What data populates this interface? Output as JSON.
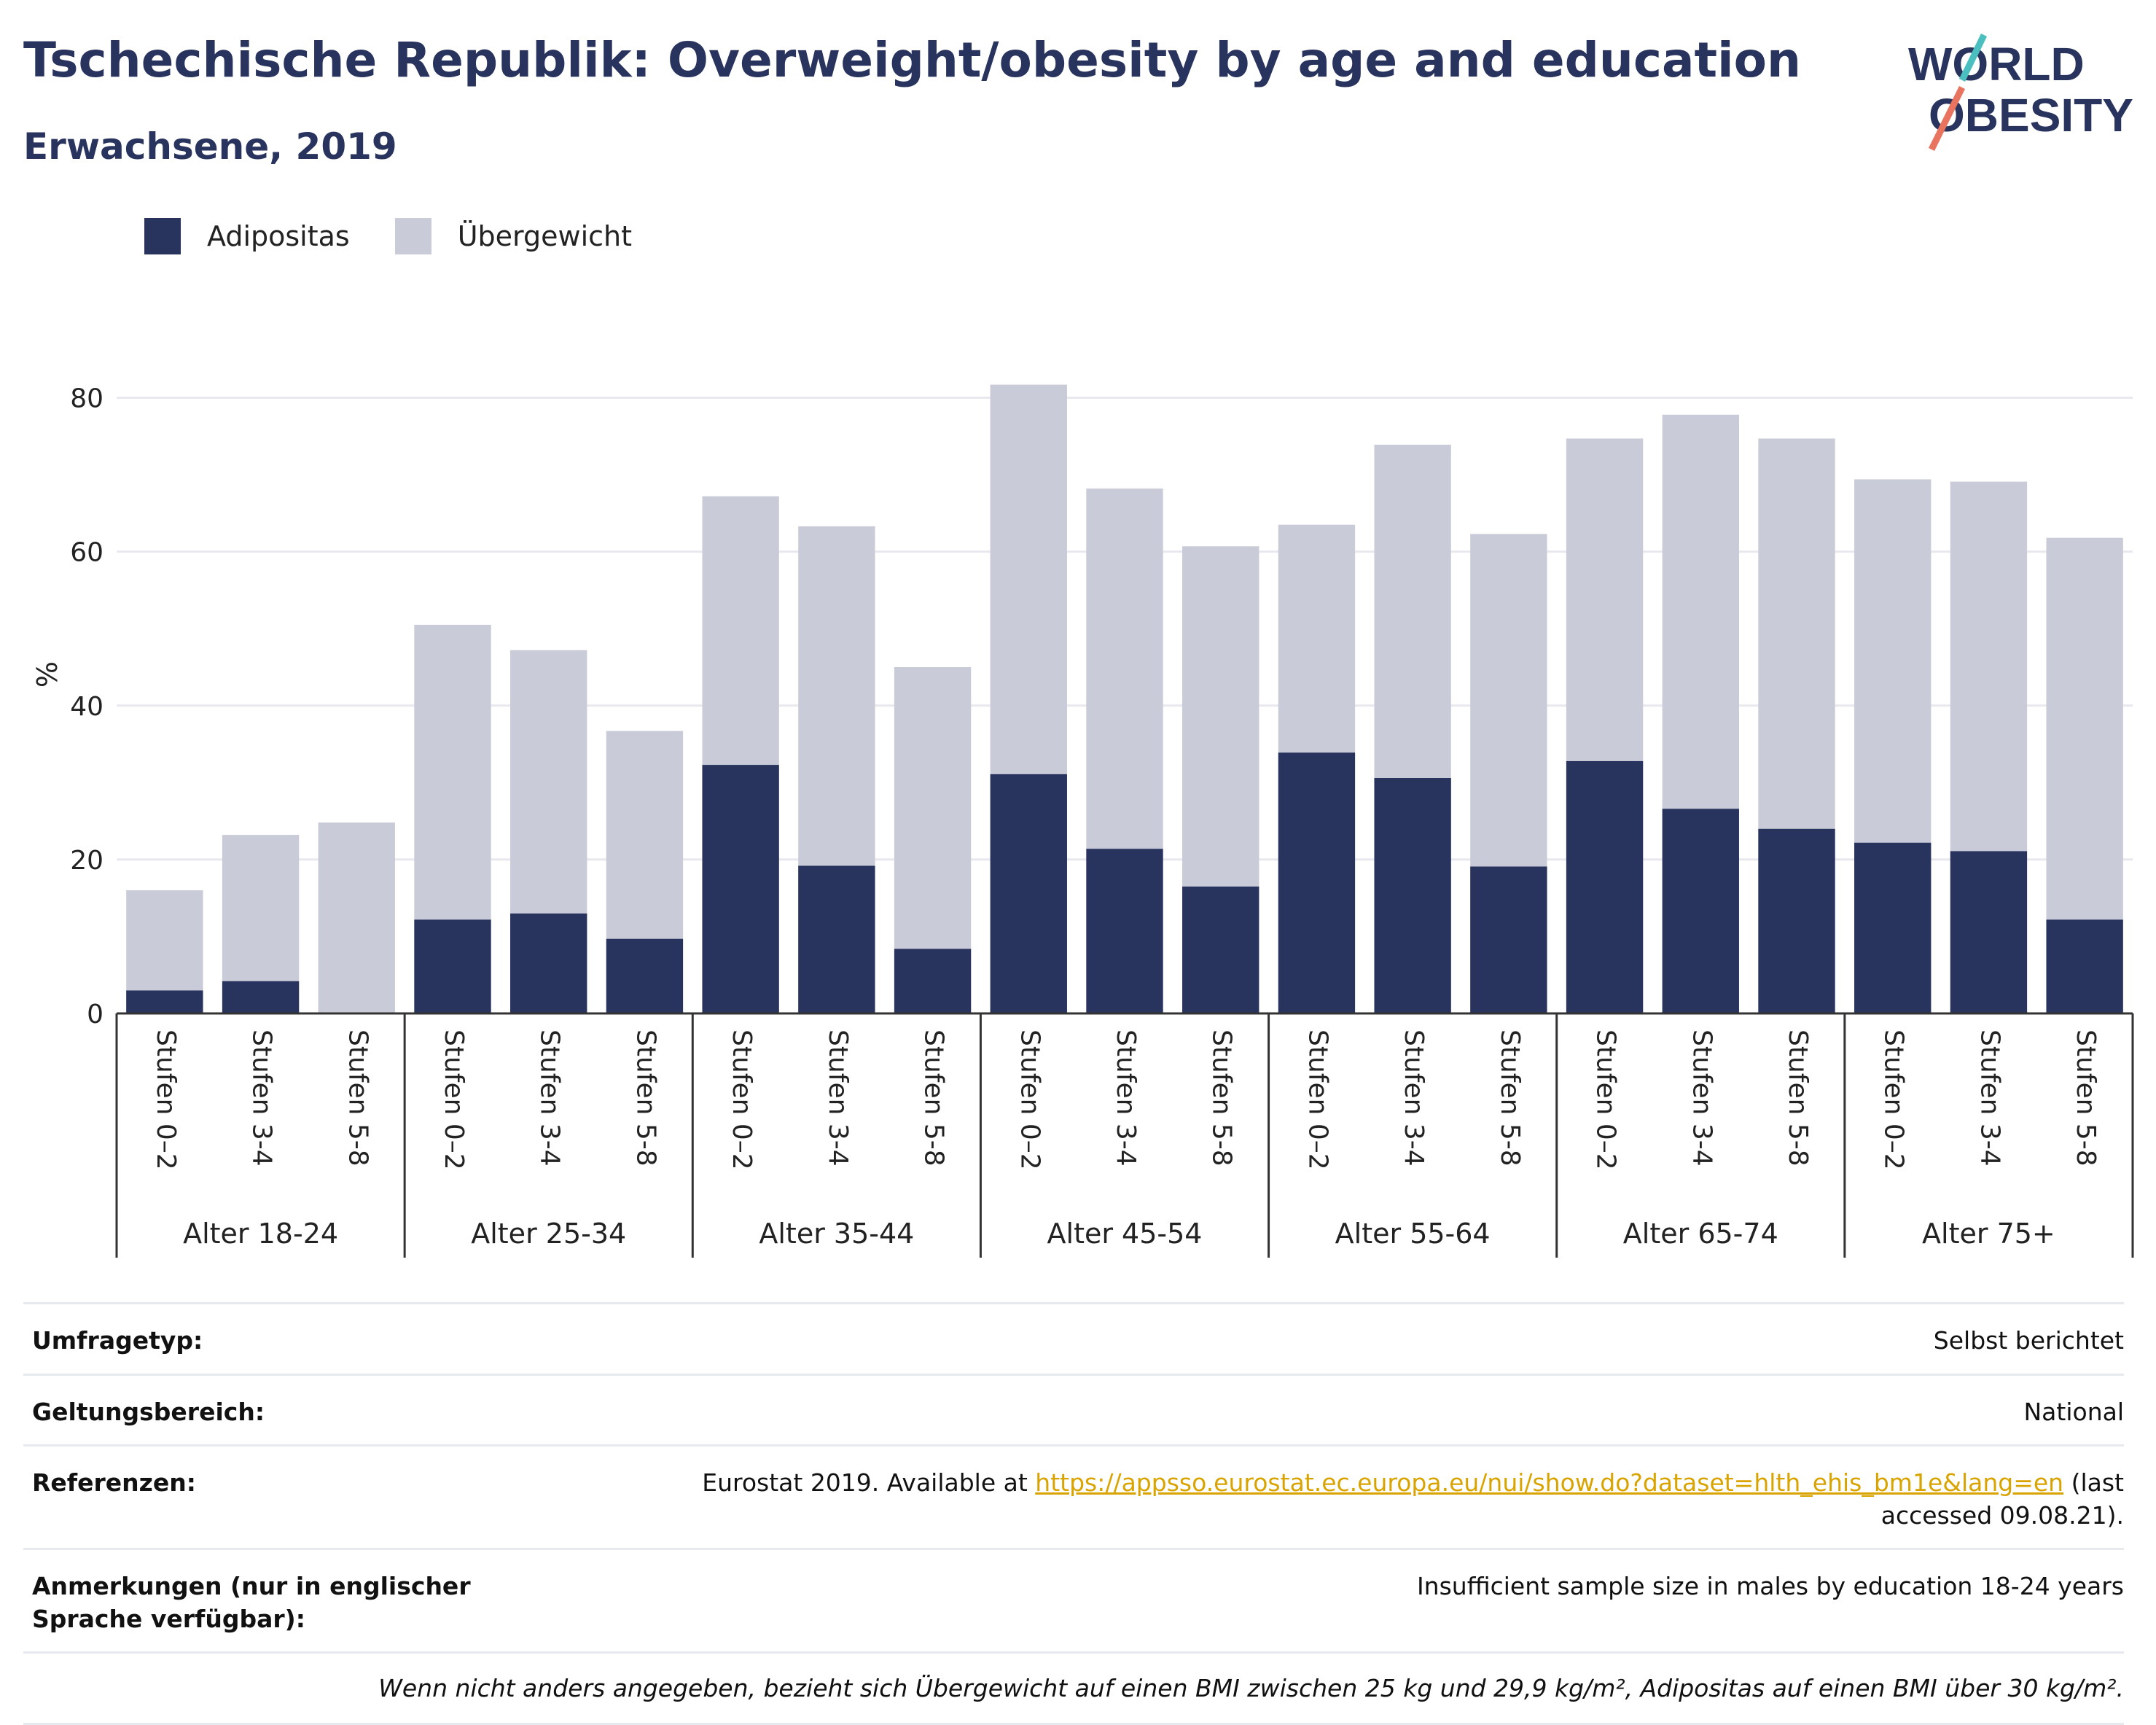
{
  "header": {
    "title": "Tschechische Republik: Overweight/obesity by age and education",
    "subtitle": "Erwachsene, 2019"
  },
  "logo": {
    "line1": "WORLD",
    "line2": "OBESITY",
    "accent_colors": [
      "#4bbfbf",
      "#e8735f"
    ]
  },
  "colors": {
    "obesity": "#28335e",
    "overweight": "#c9ccd8",
    "axis": "#333333",
    "grid": "#e8e8ee"
  },
  "chart_data": {
    "type": "bar",
    "stacked": true,
    "title": "Tschechische Republik: Overweight/obesity by age and education",
    "subtitle": "Erwachsene, 2019",
    "ylabel": "%",
    "ylim": [
      0,
      90
    ],
    "yticks": [
      0,
      20,
      40,
      60,
      80
    ],
    "grid": true,
    "legend_position": "top-left",
    "groups": [
      "Alter 18-24",
      "Alter 25-34",
      "Alter 35-44",
      "Alter 45-54",
      "Alter 55-64",
      "Alter 65-74",
      "Alter 75+"
    ],
    "subcategories": [
      "Stufen 0–2",
      "Stufen 3-4",
      "Stufen 5-8"
    ],
    "series": [
      {
        "name": "Adipositas",
        "values": [
          3.0,
          4.2,
          0,
          12.2,
          13.0,
          9.7,
          32.3,
          19.2,
          8.4,
          31.1,
          21.4,
          16.5,
          33.9,
          30.6,
          19.1,
          32.8,
          26.6,
          24.0,
          22.2,
          21.1,
          12.2
        ]
      },
      {
        "name": "Übergewicht",
        "values": [
          13.0,
          19.0,
          24.8,
          38.3,
          34.2,
          27.0,
          34.9,
          44.1,
          36.6,
          50.6,
          46.8,
          44.2,
          29.6,
          43.3,
          43.2,
          41.9,
          51.2,
          50.7,
          47.2,
          48.0,
          49.6
        ]
      }
    ]
  },
  "footer": {
    "rows": [
      {
        "label": "Umfragetyp:",
        "value": "Selbst berichtet"
      },
      {
        "label": "Geltungsbereich:",
        "value": "National"
      },
      {
        "label": "Referenzen:",
        "value_prefix": "Eurostat 2019. Available at ",
        "link": "https://appsso.eurostat.ec.europa.eu/nui/show.do?dataset=hlth_ehis_bm1e&lang=en",
        "value_suffix": " (last accessed 09.08.21)."
      },
      {
        "label": "Anmerkungen (nur in englischer Sprache verfügbar):",
        "value": "Insufficient sample size in males by education 18-24 years"
      }
    ],
    "note": "Wenn nicht anders angegeben, bezieht sich Übergewicht auf einen BMI zwischen 25 kg und 29,9 kg/m², Adipositas auf einen BMI über 30 kg/m²."
  }
}
